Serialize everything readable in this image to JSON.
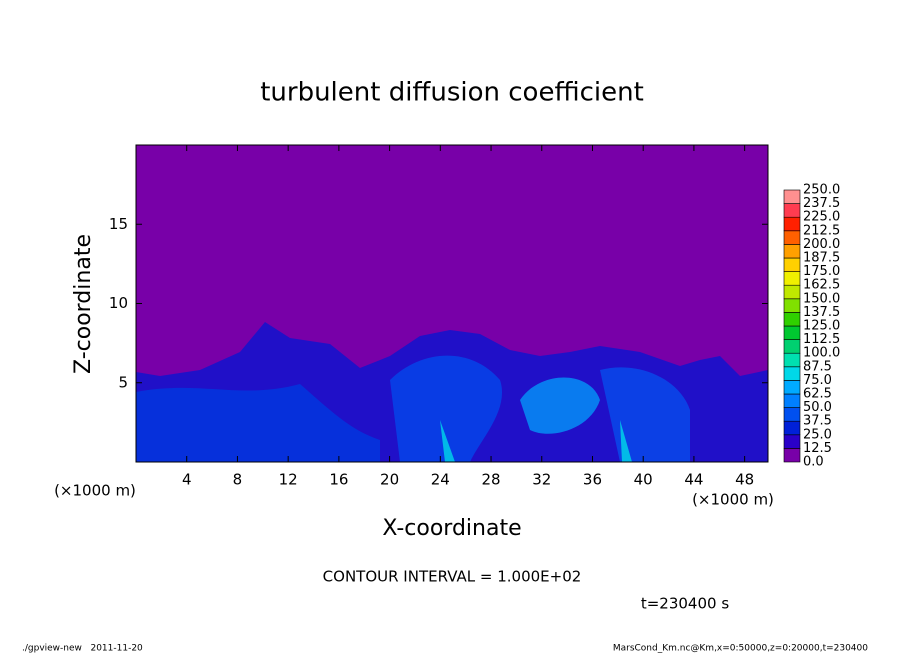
{
  "chart_data": {
    "type": "contour",
    "title": "turbulent diffusion coefficient",
    "xlabel": "X-coordinate",
    "ylabel": "Z-coordinate",
    "xunit": "(×1000 m)",
    "yunit": "(×1000 m)",
    "xlim": [
      0,
      50
    ],
    "ylim": [
      0,
      20
    ],
    "xticks": [
      4,
      8,
      12,
      16,
      20,
      24,
      28,
      32,
      36,
      40,
      44,
      48
    ],
    "yticks": [
      5,
      10,
      15
    ],
    "colorbar": {
      "levels": [
        {
          "value": 0,
          "label": "0.0"
        },
        {
          "value": 12.5,
          "label": "12.5"
        },
        {
          "value": 25,
          "label": "25.0"
        },
        {
          "value": 37.5,
          "label": "37.5"
        },
        {
          "value": 50,
          "label": "50.0"
        },
        {
          "value": 62.5,
          "label": "62.5"
        },
        {
          "value": 75,
          "label": "75.0"
        },
        {
          "value": 87.5,
          "label": "87.5"
        },
        {
          "value": 100,
          "label": "100.0"
        },
        {
          "value": 112.5,
          "label": "112.5"
        },
        {
          "value": 125,
          "label": "125.0"
        },
        {
          "value": 137.5,
          "label": "137.5"
        },
        {
          "value": 150,
          "label": "150.0"
        },
        {
          "value": 162.5,
          "label": "162.5"
        },
        {
          "value": 175,
          "label": "175.0"
        },
        {
          "value": 187.5,
          "label": "187.5"
        },
        {
          "value": 200,
          "label": "200.0"
        },
        {
          "value": 212.5,
          "label": "212.5"
        },
        {
          "value": 225,
          "label": "225.0"
        },
        {
          "value": 237.5,
          "label": "237.5"
        },
        {
          "value": 250,
          "label": "250.0"
        }
      ],
      "colors": [
        "#7800a8",
        "#2a00c8",
        "#0020d8",
        "#0050f0",
        "#0080ff",
        "#00aaff",
        "#00d8e8",
        "#00e0b0",
        "#00d070",
        "#00c830",
        "#30d000",
        "#80e000",
        "#c0e800",
        "#f0f000",
        "#ffd000",
        "#ffa000",
        "#ff6000",
        "#ff2000",
        "#ff3c50",
        "#ff9090"
      ]
    },
    "contour_interval": "CONTOUR INTERVAL = 1.000E+02",
    "time_label": "t=230400 s",
    "footer_left": "./gpview-new   2011-11-20",
    "footer_right": "MarsCond_Km.nc@Km,x=0:50000,z=0:20000,t=230400"
  }
}
